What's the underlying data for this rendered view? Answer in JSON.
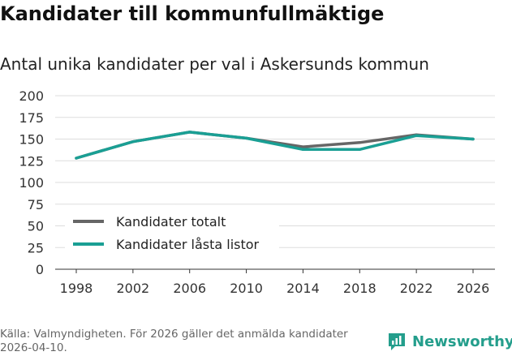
{
  "header": {
    "title": "Kandidater till kommunfullmäktige",
    "subtitle": "Antal unika kandidater per val i Askersunds kommun"
  },
  "chart_data": {
    "type": "line",
    "categories": [
      "1998",
      "2002",
      "2006",
      "2010",
      "2014",
      "2018",
      "2022",
      "2026"
    ],
    "series": [
      {
        "name": "Kandidater totalt",
        "color": "#666666",
        "values": [
          128,
          147,
          158,
          151,
          141,
          146,
          155,
          150
        ]
      },
      {
        "name": "Kandidater låsta listor",
        "color": "#1a9f94",
        "values": [
          128,
          147,
          158,
          151,
          138,
          138,
          154,
          150
        ]
      }
    ],
    "yticks": [
      "0",
      "25",
      "50",
      "75",
      "100",
      "125",
      "150",
      "175",
      "200"
    ],
    "ylim": [
      0,
      200
    ],
    "legend_position": "bottom-left",
    "grid": true
  },
  "footer": {
    "source": "Källa: Valmyndigheten. För 2026 gäller det anmälda kandidater 2026-04-10."
  },
  "brand": {
    "name": "Newsworthy",
    "icon": "newsworthy-logo-icon",
    "color": "#249e8c"
  }
}
